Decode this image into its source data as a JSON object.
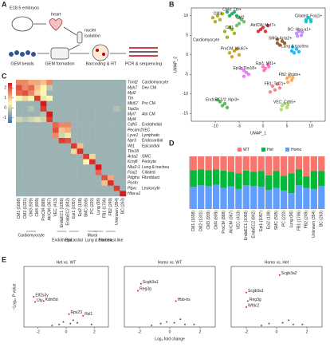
{
  "panels": [
    "A",
    "B",
    "C",
    "D",
    "E"
  ],
  "schematic": {
    "embryos": "E18.5 embryos",
    "heart": "heart",
    "nuclei": [
      "nuclei",
      "isolation"
    ],
    "beads": "GEM beads",
    "formation": "GEM formation",
    "barcoding": "Barcoding & RT",
    "sequencing": "PCR & sequencing"
  },
  "chart_data": [
    {
      "type": "scatter",
      "xlabel": "UMAP_1",
      "ylabel": "UMAP_2",
      "xlim": [
        -15,
        13
      ],
      "ylim": [
        -17,
        12
      ],
      "xticks": [
        -10,
        -5,
        0,
        5,
        10
      ],
      "yticks": [
        -15,
        -10,
        -5,
        0,
        5,
        10
      ],
      "annotations": [
        "Cardiomyocyte"
      ],
      "series": [
        {
          "name": "CM1",
          "color": "#7cae00",
          "x": [
            -8,
            -7,
            -6,
            -7.5,
            -6.5
          ],
          "y": [
            6,
            7,
            5.5,
            4.5,
            6.5
          ]
        },
        {
          "name": "CM2",
          "color": "#5cb85c",
          "x": [
            -5,
            -4.5,
            -5.5,
            -4,
            -5
          ],
          "y": [
            8,
            9,
            7.5,
            8.5,
            9.5
          ]
        },
        {
          "name": "CM3",
          "color": "#a3a500",
          "x": [
            -9,
            -10,
            -9.5,
            -8.5,
            -10.5
          ],
          "y": [
            9,
            8.5,
            10,
            10.5,
            9.5
          ]
        },
        {
          "name": "CM4: Ttn+",
          "color": "#00a651",
          "x": [
            -7,
            -6,
            -6.5,
            -7.5,
            -5.5
          ],
          "y": [
            10,
            11,
            10.5,
            11,
            10
          ]
        },
        {
          "name": "ProCM: Mki67+",
          "color": "#c49a00",
          "x": [
            -6,
            -5,
            -7,
            -5.5,
            -6.5
          ],
          "y": [
            1,
            0,
            0.5,
            1.5,
            -0.5
          ]
        },
        {
          "name": "AtriCM: Myl7+",
          "color": "#d7191c",
          "x": [
            -1,
            0,
            -0.5,
            0.5,
            1
          ],
          "y": [
            6,
            7,
            6.5,
            6,
            7.5
          ]
        },
        {
          "name": "SMC: Acta2+",
          "color": "#8b4513",
          "x": [
            3,
            3.5,
            4,
            3,
            4.5
          ],
          "y": [
            3,
            2.5,
            3.5,
            4,
            3
          ]
        },
        {
          "name": "Ciliated: Foxj1+",
          "color": "#00bfc4",
          "x": [
            9,
            9.5,
            10,
            9,
            10
          ],
          "y": [
            9,
            9.5,
            9,
            8.5,
            8.5
          ]
        },
        {
          "name": "BC: Hba-a1+",
          "color": "#b983ff",
          "x": [
            7,
            7.5,
            8,
            7.2,
            8.2
          ],
          "y": [
            5.5,
            6,
            5,
            4.8,
            5.8
          ]
        },
        {
          "name": "Lung & trachea",
          "color": "#00b0f6",
          "x": [
            6,
            7,
            6.5,
            7.5,
            6.2
          ],
          "y": [
            1,
            1.5,
            0.5,
            0.8,
            2
          ]
        },
        {
          "name": "Epi2: Tbx18+",
          "color": "#e76bf3",
          "x": [
            -4,
            -3.5,
            -4.5,
            -3,
            -4
          ],
          "y": [
            -4,
            -4.5,
            -3.5,
            -5,
            -5.5
          ]
        },
        {
          "name": "Epi1: Wt1+",
          "color": "#ff62bc",
          "x": [
            0,
            0.5,
            1,
            0.2,
            1.2
          ],
          "y": [
            -3,
            -3.5,
            -2.5,
            -4,
            -3
          ]
        },
        {
          "name": "FB1: Tcf21+",
          "color": "#f8766d",
          "x": [
            2,
            3,
            2.5,
            3.5,
            1.5
          ],
          "y": [
            -8,
            -7.5,
            -9,
            -8.5,
            -9.5
          ]
        },
        {
          "name": "FB2: Postn+",
          "color": "#ff9e4a",
          "x": [
            5,
            5.5,
            6,
            5.2,
            6.2
          ],
          "y": [
            -6,
            -5.5,
            -6.5,
            -7,
            -5.8
          ]
        },
        {
          "name": "EndoEC1/2: Npr3+",
          "color": "#3cb44b",
          "x": [
            -9,
            -8,
            -8.5,
            -9.5,
            -7.5
          ],
          "y": [
            -12,
            -12.5,
            -13,
            -11.5,
            -13.5
          ]
        },
        {
          "name": "VEC: Cdh5+",
          "color": "#a6d854",
          "x": [
            4,
            4.5,
            5,
            3.8,
            5.2
          ],
          "y": [
            -13,
            -12.5,
            -13.5,
            -14,
            -12.8
          ]
        }
      ]
    },
    {
      "type": "heatmap",
      "rows": [
        "Tnnt2",
        "Myh7",
        "Myl2",
        "Ttn",
        "Mki67",
        "Top2a",
        "Myl7",
        "Myl4",
        "Cdh5",
        "Pecam1",
        "Lyve1",
        "Npr3",
        "Wt1",
        "Tbx18",
        "Acta2",
        "Kcnj8",
        "Nkx2-1",
        "Foxj1",
        "Pdgfra",
        "Postn",
        "Ptprc",
        "Hba-a1"
      ],
      "row_group_labels": [
        "Cardiomyocyte",
        "Dev CM",
        null,
        null,
        "Pro CM",
        null,
        "Atri CM",
        null,
        "Endothelial",
        "VEC",
        "Lymphatic",
        "Endocardial",
        "Epicardial",
        null,
        "SMC",
        "Pericyte",
        "Lung & trachea",
        "Ciliated",
        "Fibroblast",
        null,
        "Leukocyte",
        null
      ],
      "columns": [
        "CM1 (1698)",
        "CM2 (1331)",
        "CM3 (939)",
        "CM4 (809)",
        "ProCM (888)",
        "AtriCM (367)",
        "VEC (413)",
        "EndoEC1 (1059)",
        "EndoEC2 (842)",
        "Epi1 (1057)",
        "Epi2 (138)",
        "SMC (505)",
        "PC (220)",
        "Lung (96)",
        "FB1 (1706)",
        "FB2 (249)",
        "Unknown (354)",
        "BC (263)"
      ],
      "column_group_labels": [
        null,
        null,
        "Cardiomyocyte",
        null,
        null,
        null,
        null,
        "Endothelial",
        null,
        "Epicardial",
        null,
        null,
        "Mural",
        "Lung & trachea",
        null,
        "Fibroblast-like",
        null,
        null
      ],
      "colormap": [
        "#3b6fb6",
        "#fff7b0",
        "#d7191c"
      ],
      "colorbar_lim": [
        -1.5,
        2.5
      ],
      "colorbar_ticks": [
        2,
        1,
        0,
        -1
      ],
      "values": [
        [
          1.5,
          1.5,
          1.2,
          1.2,
          1,
          1.5,
          -0.5,
          -0.5,
          -0.5,
          -0.5,
          -0.5,
          -0.5,
          -0.5,
          -0.5,
          -0.5,
          -0.5,
          -0.5,
          -0.5
        ],
        [
          2,
          1.5,
          1.8,
          1,
          0.5,
          -0.2,
          -0.5,
          -0.5,
          -0.5,
          -0.5,
          -0.5,
          -0.5,
          -0.5,
          -0.5,
          -0.5,
          -0.5,
          -0.5,
          -0.5
        ],
        [
          1.8,
          2,
          1.5,
          0.8,
          0.5,
          -0.5,
          -0.5,
          -0.5,
          -0.5,
          -0.5,
          -0.5,
          -0.5,
          -0.5,
          -0.5,
          -0.5,
          -0.5,
          -0.5,
          -0.5
        ],
        [
          0.5,
          0.8,
          0.5,
          2.2,
          0.3,
          0.5,
          -0.5,
          -0.5,
          -0.5,
          -0.5,
          -0.5,
          -0.5,
          -0.5,
          -0.5,
          -0.5,
          -0.5,
          -0.5,
          -0.5
        ],
        [
          -0.5,
          -0.5,
          -0.5,
          -0.5,
          2.5,
          -0.5,
          -0.5,
          -0.5,
          -0.5,
          -0.5,
          -0.5,
          -0.5,
          -0.5,
          -0.5,
          -0.5,
          -0.5,
          -0.5,
          -0.5
        ],
        [
          -0.5,
          -0.5,
          -0.3,
          -0.5,
          2.2,
          -0.5,
          -0.5,
          -0.5,
          -0.5,
          -0.5,
          -0.5,
          -0.5,
          -0.5,
          -0.5,
          -0.5,
          -0.5,
          -0.3,
          -0.5
        ],
        [
          -0.5,
          -0.5,
          -0.5,
          -0.5,
          -0.3,
          2.5,
          -0.5,
          -0.5,
          -0.5,
          -0.5,
          -0.5,
          -0.5,
          -0.5,
          -0.5,
          -0.5,
          -0.5,
          -0.5,
          -0.5
        ],
        [
          0,
          -0.2,
          0,
          0.2,
          0,
          2.2,
          -0.5,
          -0.5,
          -0.5,
          -0.5,
          -0.5,
          -0.5,
          -0.5,
          -0.5,
          -0.5,
          -0.5,
          -0.5,
          -0.5
        ],
        [
          -0.5,
          -0.5,
          -0.5,
          -0.5,
          -0.5,
          -0.5,
          1.8,
          1.5,
          1.5,
          -0.5,
          -0.5,
          -0.5,
          -0.5,
          -0.5,
          -0.5,
          -0.5,
          -0.5,
          -0.5
        ],
        [
          -0.5,
          -0.5,
          -0.5,
          -0.5,
          -0.5,
          -0.5,
          2,
          1,
          1.2,
          -0.5,
          -0.5,
          -0.5,
          -0.5,
          -0.5,
          -0.5,
          -0.5,
          -0.5,
          -0.5
        ],
        [
          -0.5,
          -0.5,
          -0.5,
          -0.5,
          -0.5,
          -0.5,
          1.5,
          0,
          0.3,
          -0.5,
          -0.5,
          -0.5,
          -0.5,
          -0.5,
          -0.5,
          -0.5,
          -0.5,
          -0.5
        ],
        [
          -0.5,
          -0.5,
          -0.5,
          -0.5,
          -0.5,
          -0.5,
          -0.5,
          2.2,
          2,
          -0.5,
          -0.5,
          -0.5,
          -0.5,
          -0.5,
          -0.5,
          -0.5,
          -0.5,
          -0.5
        ],
        [
          -0.5,
          -0.5,
          -0.5,
          -0.5,
          -0.5,
          -0.5,
          -0.5,
          -0.5,
          -0.5,
          2.2,
          1,
          -0.5,
          -0.5,
          -0.5,
          -0.5,
          -0.5,
          -0.5,
          -0.5
        ],
        [
          -0.5,
          -0.5,
          -0.5,
          -0.5,
          -0.5,
          -0.5,
          -0.5,
          -0.5,
          -0.5,
          0.8,
          2.3,
          -0.5,
          -0.5,
          -0.5,
          -0.5,
          -0.5,
          -0.5,
          -0.5
        ],
        [
          -0.5,
          -0.5,
          -0.5,
          -0.5,
          -0.5,
          -0.5,
          -0.5,
          -0.5,
          -0.5,
          -0.5,
          -0.5,
          2.2,
          0.8,
          -0.5,
          -0.5,
          -0.5,
          -0.5,
          -0.5
        ],
        [
          -0.5,
          -0.5,
          -0.5,
          -0.5,
          -0.5,
          -0.5,
          -0.5,
          -0.5,
          -0.5,
          -0.5,
          -0.5,
          0.5,
          2.3,
          -0.5,
          -0.5,
          -0.5,
          -0.5,
          -0.5
        ],
        [
          -0.5,
          -0.5,
          -0.5,
          -0.5,
          -0.5,
          -0.5,
          -0.5,
          -0.5,
          -0.5,
          -0.5,
          -0.5,
          -0.5,
          -0.5,
          2.5,
          -0.5,
          -0.5,
          -0.5,
          -0.5
        ],
        [
          -0.5,
          -0.5,
          -0.5,
          -0.5,
          -0.5,
          -0.5,
          -0.5,
          -0.5,
          -0.5,
          -0.5,
          -0.5,
          -0.5,
          -0.5,
          1.8,
          -0.5,
          -0.5,
          -0.5,
          -0.5
        ],
        [
          -0.5,
          -0.5,
          -0.5,
          -0.5,
          -0.5,
          -0.5,
          -0.5,
          -0.5,
          -0.5,
          -0.5,
          -0.5,
          -0.5,
          -0.5,
          -0.5,
          2,
          1.2,
          -0.5,
          -0.5
        ],
        [
          -0.5,
          -0.5,
          -0.5,
          -0.5,
          -0.5,
          -0.5,
          -0.5,
          -0.5,
          -0.5,
          -0.5,
          -0.5,
          -0.5,
          -0.5,
          -0.5,
          1,
          2.3,
          -0.5,
          -0.5
        ],
        [
          -0.5,
          -0.5,
          -0.5,
          -0.5,
          -0.5,
          -0.5,
          -0.5,
          -0.5,
          -0.5,
          -0.5,
          -0.5,
          -0.5,
          -0.5,
          -0.5,
          -0.5,
          -0.5,
          2.2,
          -0.5
        ],
        [
          -0.5,
          -0.5,
          -0.5,
          -0.5,
          -0.5,
          -0.5,
          -0.5,
          -0.5,
          -0.5,
          -0.5,
          -0.5,
          -0.5,
          -0.5,
          -0.5,
          -0.5,
          -0.5,
          -0.5,
          2.5
        ]
      ]
    },
    {
      "type": "stacked_bar",
      "ylim": [
        0,
        1
      ],
      "categories": [
        "CM1 (1698)",
        "CM2 (1331)",
        "CM3 (939)",
        "CM4 (809)",
        "ProCM (888)",
        "AtriCM (367)",
        "VEC (413)",
        "EndoEC1 (1059)",
        "EndoEC2 (842)",
        "Epi1 (1057)",
        "Epi2 (138)",
        "SMC (505)",
        "PC (220)",
        "Lung (96)",
        "FB1 (1706)",
        "FB2 (249)",
        "Unknown (354)",
        "BC (263)"
      ],
      "series": [
        {
          "name": "WT",
          "color": "#f8766d",
          "values": [
            0.26,
            0.25,
            0.26,
            0.25,
            0.27,
            0.29,
            0.32,
            0.27,
            0.29,
            0.28,
            0.36,
            0.28,
            0.37,
            0.32,
            0.25,
            0.38,
            0.28,
            0.28
          ]
        },
        {
          "name": "Het",
          "color": "#00ba38",
          "values": [
            0.32,
            0.3,
            0.3,
            0.29,
            0.33,
            0.28,
            0.3,
            0.28,
            0.27,
            0.3,
            0.28,
            0.32,
            0.28,
            0.38,
            0.3,
            0.22,
            0.34,
            0.28
          ]
        },
        {
          "name": "Homo",
          "color": "#619cff",
          "values": [
            0.42,
            0.45,
            0.44,
            0.46,
            0.4,
            0.43,
            0.38,
            0.45,
            0.44,
            0.42,
            0.36,
            0.4,
            0.35,
            0.3,
            0.45,
            0.4,
            0.38,
            0.44
          ]
        }
      ]
    },
    {
      "type": "scatter",
      "title": "Het vs. WT",
      "ylabel": "−Log₁₀ P value",
      "xlim": [
        -3,
        3
      ],
      "ylim": [
        0,
        7
      ],
      "xticks": [
        -2,
        0,
        2
      ],
      "color": "#555555",
      "highlight_color": "#e41a1c",
      "x": [
        -2.3,
        -2.2,
        -1.6,
        0.2,
        1.2,
        -0.5,
        0.3,
        0.8,
        -1,
        0.5,
        1.8,
        -0.2
      ],
      "y": [
        3.5,
        2.9,
        3.0,
        1.5,
        1.3,
        0.3,
        0.4,
        0.5,
        0.2,
        0.8,
        0.3,
        0.6
      ],
      "labels": [
        "Eif2s3y",
        "Uty",
        "Kdm5d",
        "Rps23",
        "Rsl1",
        null,
        null,
        null,
        null,
        null,
        null,
        null
      ]
    },
    {
      "type": "scatter",
      "title": "Homo vs. WT",
      "xlabel": "Log₂ fold change",
      "xlim": [
        -3,
        3
      ],
      "ylim": [
        0,
        7
      ],
      "xticks": [
        -2,
        0,
        2
      ],
      "color": "#555555",
      "highlight_color": "#e41a1c",
      "x": [
        -1.9,
        -2.1,
        0.4,
        -0.6,
        0.3,
        1,
        -1.2,
        0.7,
        1.6,
        -0.2
      ],
      "y": [
        5.0,
        4.2,
        3.0,
        0.4,
        0.5,
        0.3,
        0.2,
        0.9,
        0.3,
        0.6
      ],
      "labels": [
        "Scgb3a1",
        "Reg3g",
        "Hbb-bs",
        null,
        null,
        null,
        null,
        null,
        null,
        null
      ]
    },
    {
      "type": "scatter",
      "title": "Homo vs. Het",
      "xlim": [
        -3,
        3
      ],
      "ylim": [
        0,
        7
      ],
      "xticks": [
        -2,
        0,
        2
      ],
      "color": "#555555",
      "highlight_color": "#e41a1c",
      "x": [
        0.2,
        -2.0,
        -1.9,
        -2.0,
        -0.5,
        0.4,
        1.1,
        -1,
        0.8,
        1.7
      ],
      "y": [
        6.0,
        4.0,
        3.0,
        2.3,
        0.4,
        0.5,
        0.3,
        0.2,
        0.8,
        0.3
      ],
      "labels": [
        "Scgb3a2",
        "Scgb3a1",
        "Reg3g",
        "Wfdc2",
        null,
        null,
        null,
        null,
        null,
        null
      ]
    }
  ]
}
